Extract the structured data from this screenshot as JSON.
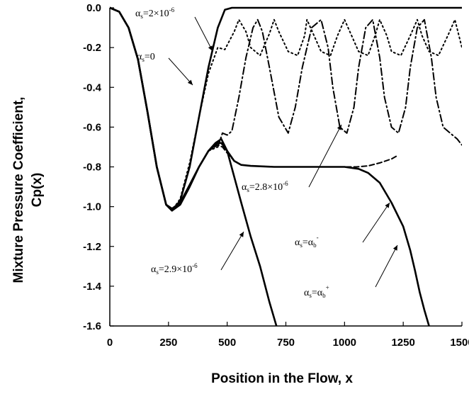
{
  "chart_data": {
    "type": "line",
    "xlabel": "Position in the Flow, x",
    "ylabel_line1": "Mixture Pressure Coefficient,",
    "ylabel_line2": "Cp(x)",
    "xlim": [
      0,
      1500
    ],
    "ylim": [
      -1.6,
      0.0
    ],
    "xticks": [
      "0",
      "250",
      "500",
      "750",
      "1000",
      "1250",
      "1500"
    ],
    "yticks": [
      "0.0",
      "-0.2",
      "-0.4",
      "-0.6",
      "-0.8",
      "-1.0",
      "-1.2",
      "-1.4",
      "-1.6"
    ],
    "grid": false,
    "legend": "none",
    "series": [
      {
        "style": "solid",
        "x": [
          0,
          40,
          80,
          120,
          160,
          200,
          240,
          265,
          300,
          340,
          380,
          420,
          460,
          490,
          520,
          1500
        ],
        "y": [
          0.0,
          -0.02,
          -0.1,
          -0.26,
          -0.52,
          -0.8,
          -0.99,
          -1.02,
          -0.97,
          -0.8,
          -0.55,
          -0.3,
          -0.1,
          -0.01,
          0.0,
          0.0
        ]
      },
      {
        "style": "dotted",
        "x": [
          0,
          40,
          80,
          120,
          160,
          200,
          240,
          265,
          300,
          340,
          380,
          420,
          460,
          490,
          530,
          550,
          580,
          600,
          640,
          680,
          700,
          720,
          760,
          800,
          830,
          840,
          870,
          900,
          940,
          970,
          1000,
          1030,
          1060,
          1100,
          1130,
          1150,
          1180,
          1200,
          1240,
          1280,
          1310,
          1330,
          1360,
          1400,
          1440,
          1470,
          1500
        ],
        "y": [
          0.0,
          -0.02,
          -0.1,
          -0.26,
          -0.52,
          -0.8,
          -0.99,
          -1.02,
          -0.96,
          -0.78,
          -0.55,
          -0.33,
          -0.2,
          -0.21,
          -0.12,
          -0.06,
          -0.12,
          -0.2,
          -0.24,
          -0.13,
          -0.06,
          -0.12,
          -0.22,
          -0.24,
          -0.14,
          -0.06,
          -0.14,
          -0.22,
          -0.24,
          -0.14,
          -0.06,
          -0.14,
          -0.22,
          -0.24,
          -0.14,
          -0.06,
          -0.14,
          -0.22,
          -0.24,
          -0.14,
          -0.06,
          -0.14,
          -0.22,
          -0.24,
          -0.14,
          -0.06,
          -0.2
        ]
      },
      {
        "style": "dashdot",
        "x": [
          0,
          40,
          80,
          120,
          160,
          200,
          240,
          265,
          300,
          340,
          380,
          420,
          460,
          480,
          500,
          520,
          550,
          580,
          610,
          630,
          650,
          680,
          720,
          760,
          790,
          820,
          860,
          900,
          930,
          950,
          980,
          1010,
          1040,
          1060,
          1090,
          1120,
          1150,
          1170,
          1200,
          1230,
          1260,
          1280,
          1310,
          1340,
          1370,
          1390,
          1420,
          1450,
          1480,
          1500
        ],
        "y": [
          0.0,
          -0.02,
          -0.1,
          -0.26,
          -0.52,
          -0.8,
          -0.99,
          -1.02,
          -0.98,
          -0.9,
          -0.8,
          -0.72,
          -0.7,
          -0.63,
          -0.64,
          -0.62,
          -0.45,
          -0.25,
          -0.1,
          -0.06,
          -0.12,
          -0.3,
          -0.55,
          -0.63,
          -0.5,
          -0.3,
          -0.1,
          -0.06,
          -0.2,
          -0.4,
          -0.6,
          -0.63,
          -0.5,
          -0.3,
          -0.1,
          -0.06,
          -0.25,
          -0.45,
          -0.6,
          -0.63,
          -0.5,
          -0.3,
          -0.1,
          -0.06,
          -0.25,
          -0.45,
          -0.6,
          -0.63,
          -0.66,
          -0.69
        ]
      },
      {
        "style": "dashed",
        "x": [
          0,
          40,
          80,
          120,
          160,
          200,
          240,
          265,
          300,
          340,
          380,
          420,
          460,
          480,
          500,
          530,
          560,
          600,
          700,
          800,
          900,
          1000,
          1050,
          1100,
          1150,
          1200,
          1230
        ],
        "y": [
          0.0,
          -0.02,
          -0.1,
          -0.26,
          -0.52,
          -0.8,
          -0.99,
          -1.02,
          -0.99,
          -0.9,
          -0.8,
          -0.72,
          -0.69,
          -0.7,
          -0.73,
          -0.77,
          -0.79,
          -0.795,
          -0.8,
          -0.8,
          -0.8,
          -0.8,
          -0.8,
          -0.795,
          -0.78,
          -0.76,
          -0.74
        ]
      },
      {
        "style": "solid",
        "x": [
          0,
          40,
          80,
          120,
          160,
          200,
          240,
          265,
          300,
          340,
          380,
          420,
          460,
          475,
          500,
          530,
          560,
          600,
          700,
          800,
          900,
          1000,
          1060,
          1100,
          1150,
          1200,
          1250,
          1280,
          1300,
          1320,
          1340,
          1360
        ],
        "y": [
          0.0,
          -0.02,
          -0.1,
          -0.26,
          -0.52,
          -0.8,
          -0.99,
          -1.02,
          -0.99,
          -0.9,
          -0.8,
          -0.72,
          -0.68,
          -0.68,
          -0.72,
          -0.77,
          -0.79,
          -0.795,
          -0.8,
          -0.8,
          -0.8,
          -0.8,
          -0.81,
          -0.83,
          -0.88,
          -0.98,
          -1.1,
          -1.22,
          -1.32,
          -1.43,
          -1.52,
          -1.6
        ]
      },
      {
        "style": "solid",
        "x": [
          0,
          40,
          80,
          120,
          160,
          200,
          240,
          265,
          300,
          340,
          380,
          420,
          450,
          475,
          500,
          530,
          560,
          600,
          640,
          680,
          710
        ],
        "y": [
          0.0,
          -0.02,
          -0.1,
          -0.26,
          -0.52,
          -0.8,
          -0.99,
          -1.01,
          -0.98,
          -0.89,
          -0.8,
          -0.72,
          -0.68,
          -0.66,
          -0.72,
          -0.85,
          -0.98,
          -1.15,
          -1.3,
          -1.48,
          -1.6
        ]
      }
    ],
    "annotations": [
      {
        "base": "α",
        "sub": "s",
        "rest": "=2×10",
        "sup": "-6"
      },
      {
        "base": "α",
        "sub": "s",
        "rest": "=0",
        "sup": ""
      },
      {
        "base": "α",
        "sub": "s",
        "rest": "=2.8×10",
        "sup": "-6"
      },
      {
        "base": "α",
        "sub": "s",
        "rest": "=α",
        "sub2": "b",
        "sup": "-"
      },
      {
        "base": "α",
        "sub": "s",
        "rest": "=2.9×10",
        "sup": "-6"
      },
      {
        "base": "α",
        "sub": "s",
        "rest": "=α",
        "sub2": "b",
        "sup": "+"
      }
    ]
  }
}
